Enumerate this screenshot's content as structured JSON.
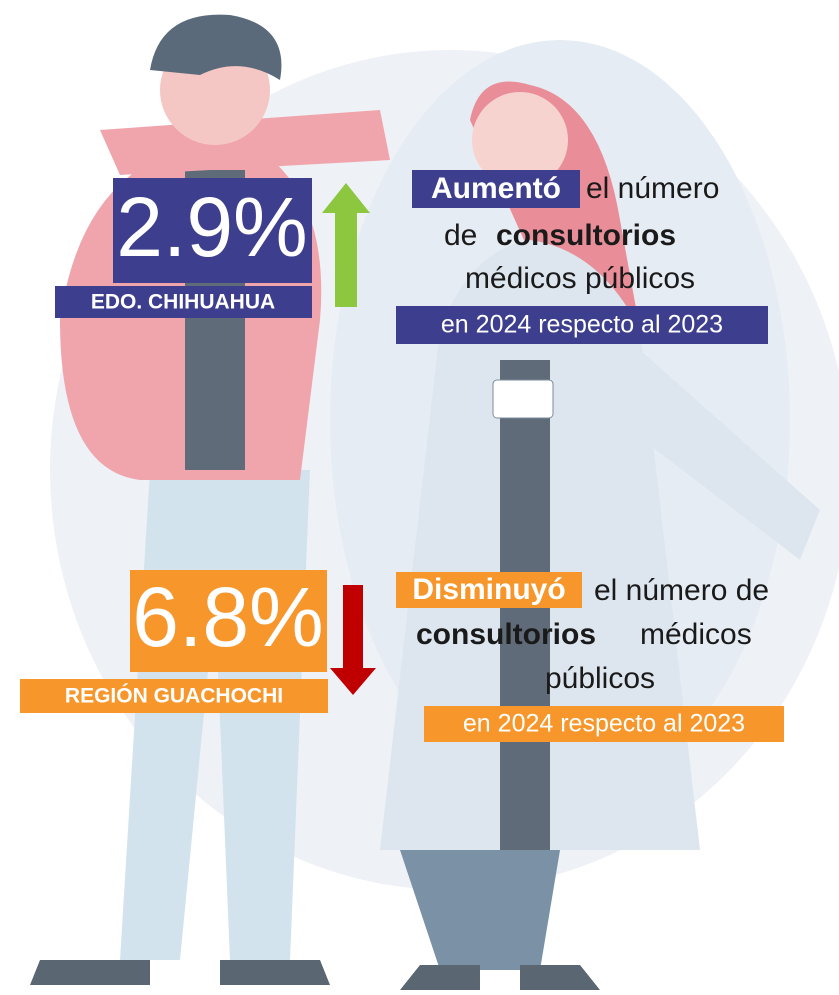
{
  "stats": [
    {
      "percent": "2.9%",
      "region": "EDO. CHIHUAHUA",
      "description": {
        "highlight": "Aumentó",
        "line1": "el número",
        "line2_prefix": "de",
        "line2_bold": "consultorios",
        "line3": "médicos públicos",
        "period": "en 2024 respecto al 2023"
      }
    },
    {
      "percent": "6.8%",
      "region": "REGIÓN GUACHOCHI",
      "description": {
        "highlight": "Disminuyó",
        "line1": "el número de",
        "line2_bold": "consultorios",
        "line2_suffix": "médicos",
        "line3": "públicos",
        "period": "en 2024 respecto al 2023"
      }
    }
  ]
}
